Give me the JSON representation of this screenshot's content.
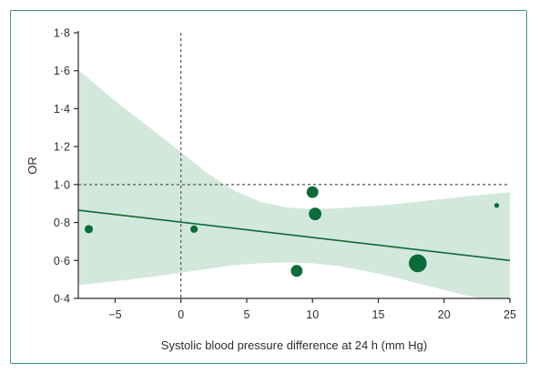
{
  "chart_data": {
    "type": "scatter",
    "title": "",
    "xlabel": "Systolic blood pressure difference at 24 h (mm Hg)",
    "ylabel": "OR",
    "xlim": [
      -7.8,
      25
    ],
    "ylim": [
      0.4,
      1.8
    ],
    "x_ticks": [
      -5,
      0,
      5,
      10,
      15,
      20,
      25
    ],
    "x_tick_labels": [
      "−5",
      "0",
      "5",
      "10",
      "15",
      "20",
      "25"
    ],
    "y_ticks": [
      0.4,
      0.6,
      0.8,
      1.0,
      1.2,
      1.4,
      1.6,
      1.8
    ],
    "y_tick_labels": [
      "0·4",
      "0·6",
      "0·8",
      "1·0",
      "1·2",
      "1·4",
      "1·6",
      "1·8"
    ],
    "reference_lines": {
      "x": 0,
      "y": 1.0,
      "style": "dashed"
    },
    "points": [
      {
        "x": -7,
        "y": 0.765,
        "weight": 3
      },
      {
        "x": 1,
        "y": 0.765,
        "weight": 2.5
      },
      {
        "x": 8.8,
        "y": 0.545,
        "weight": 5
      },
      {
        "x": 10,
        "y": 0.96,
        "weight": 5
      },
      {
        "x": 10.2,
        "y": 0.845,
        "weight": 5.5
      },
      {
        "x": 18,
        "y": 0.585,
        "weight": 8.5
      },
      {
        "x": 24,
        "y": 0.89,
        "weight": 1
      }
    ],
    "regression_line": [
      {
        "x": -7.8,
        "y": 0.865
      },
      {
        "x": 25,
        "y": 0.6
      }
    ],
    "confidence_band": {
      "upper": [
        {
          "x": -7.8,
          "y": 1.605
        },
        {
          "x": -5,
          "y": 1.44
        },
        {
          "x": -2,
          "y": 1.28
        },
        {
          "x": 0,
          "y": 1.17
        },
        {
          "x": 2,
          "y": 1.06
        },
        {
          "x": 4,
          "y": 0.97
        },
        {
          "x": 6,
          "y": 0.91
        },
        {
          "x": 8,
          "y": 0.88
        },
        {
          "x": 10,
          "y": 0.87
        },
        {
          "x": 12,
          "y": 0.875
        },
        {
          "x": 14,
          "y": 0.885
        },
        {
          "x": 16,
          "y": 0.895
        },
        {
          "x": 18,
          "y": 0.91
        },
        {
          "x": 20,
          "y": 0.925
        },
        {
          "x": 22,
          "y": 0.94
        },
        {
          "x": 25,
          "y": 0.96
        }
      ],
      "lower": [
        {
          "x": -7.8,
          "y": 0.47
        },
        {
          "x": -5,
          "y": 0.49
        },
        {
          "x": -2,
          "y": 0.515
        },
        {
          "x": 0,
          "y": 0.535
        },
        {
          "x": 2,
          "y": 0.555
        },
        {
          "x": 4,
          "y": 0.575
        },
        {
          "x": 6,
          "y": 0.585
        },
        {
          "x": 8,
          "y": 0.59
        },
        {
          "x": 10,
          "y": 0.585
        },
        {
          "x": 12,
          "y": 0.57
        },
        {
          "x": 14,
          "y": 0.545
        },
        {
          "x": 16,
          "y": 0.515
        },
        {
          "x": 18,
          "y": 0.48
        },
        {
          "x": 20,
          "y": 0.445
        },
        {
          "x": 22,
          "y": 0.41
        },
        {
          "x": 25,
          "y": 0.375
        }
      ]
    },
    "grid": false,
    "legend": "none",
    "colors": {
      "point": "#0c6b3a",
      "line": "#0c6b3a",
      "band": "#d3e8dc",
      "axis": "#2d2d2d",
      "reference": "#555555",
      "frame": "#3d9a6b"
    }
  }
}
